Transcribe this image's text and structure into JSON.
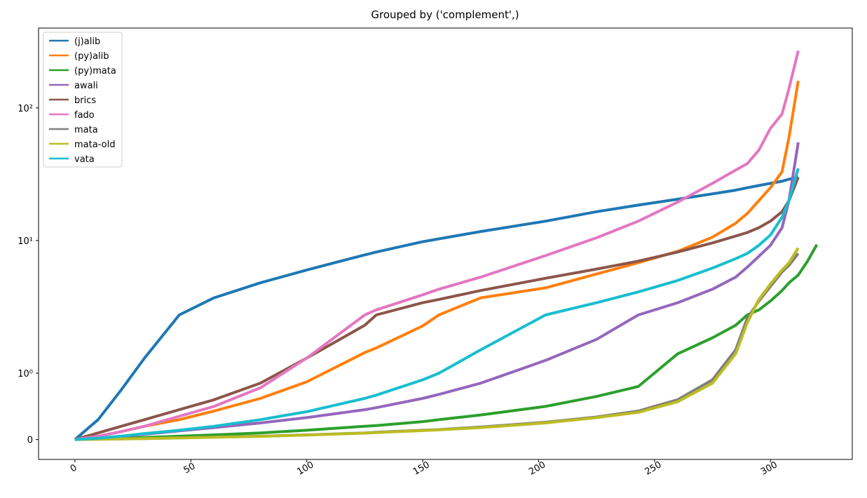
{
  "chart_data": {
    "type": "line",
    "title": "Grouped by ('complement',)",
    "yscale": "symlog",
    "linthresh": 1,
    "x": [
      0,
      10,
      20,
      30,
      45,
      60,
      80,
      100,
      125,
      130,
      150,
      157,
      175,
      203,
      225,
      243,
      260,
      275,
      285,
      290,
      295,
      300,
      305,
      308,
      312,
      316,
      320
    ],
    "xlim": [
      -15.7,
      335.3
    ],
    "xticks": [
      0,
      50,
      100,
      150,
      200,
      250,
      300
    ],
    "ylim": [
      -0.3,
      400
    ],
    "yticks": [
      0,
      {
        "value": 1,
        "label": "10⁰"
      },
      {
        "value": 10,
        "label": "10¹"
      },
      {
        "value": 100,
        "label": "10²"
      }
    ],
    "legend": "upper left",
    "series": [
      {
        "name": "(j)alib",
        "color": "#1f77b4",
        "values": [
          0,
          0.3,
          0.75,
          1.3,
          2.75,
          3.7,
          4.8,
          6.0,
          7.8,
          8.2,
          9.8,
          10.3,
          11.7,
          14,
          16.5,
          18.5,
          20.5,
          22.5,
          24,
          25,
          26,
          27,
          28,
          29,
          30,
          null,
          null
        ]
      },
      {
        "name": "(py)alib",
        "color": "#ff7f0e",
        "values": [
          0,
          0.05,
          0.12,
          0.2,
          0.3,
          0.43,
          0.62,
          0.87,
          1.43,
          1.55,
          2.27,
          2.75,
          3.7,
          4.4,
          5.6,
          6.8,
          8.3,
          10.6,
          13.5,
          16,
          20,
          25,
          33,
          60,
          160,
          null,
          null
        ]
      },
      {
        "name": "(py)mata",
        "color": "#2ca02c",
        "values": [
          0,
          0.01,
          0.02,
          0.03,
          0.05,
          0.07,
          0.1,
          0.14,
          0.2,
          0.21,
          0.27,
          0.3,
          0.37,
          0.5,
          0.65,
          0.8,
          1.4,
          1.85,
          2.3,
          2.75,
          3.0,
          3.5,
          4.2,
          4.8,
          5.5,
          7,
          9.3
        ]
      },
      {
        "name": "awali",
        "color": "#9467bd",
        "values": [
          0,
          0.02,
          0.05,
          0.08,
          0.13,
          0.18,
          0.25,
          0.33,
          0.45,
          0.48,
          0.62,
          0.68,
          0.85,
          1.25,
          1.8,
          2.75,
          3.4,
          4.3,
          5.3,
          6.3,
          7.6,
          9.2,
          12.5,
          20,
          55,
          null,
          null
        ]
      },
      {
        "name": "brics",
        "color": "#8c564b",
        "values": [
          0,
          0.1,
          0.2,
          0.3,
          0.45,
          0.6,
          0.85,
          1.3,
          2.3,
          2.75,
          3.4,
          3.6,
          4.2,
          5.2,
          6.1,
          7.0,
          8.2,
          9.6,
          10.8,
          11.5,
          12.5,
          14,
          16.5,
          20,
          30,
          null,
          null
        ]
      },
      {
        "name": "fado",
        "color": "#e377c2",
        "values": [
          0,
          0.05,
          0.12,
          0.2,
          0.35,
          0.5,
          0.78,
          1.3,
          2.75,
          3.0,
          3.9,
          4.3,
          5.3,
          7.7,
          10.5,
          14,
          19.5,
          27,
          34,
          38,
          48,
          70,
          90,
          140,
          270,
          null,
          null
        ]
      },
      {
        "name": "mata",
        "color": "#7f7f7f",
        "values": [
          0,
          0.005,
          0.01,
          0.015,
          0.025,
          0.035,
          0.05,
          0.07,
          0.1,
          0.11,
          0.14,
          0.15,
          0.19,
          0.26,
          0.34,
          0.43,
          0.6,
          0.9,
          1.5,
          2.6,
          3.5,
          4.5,
          5.8,
          6.5,
          8,
          null,
          null
        ]
      },
      {
        "name": "mata-old",
        "color": "#bcbd22",
        "values": [
          0,
          0.005,
          0.01,
          0.015,
          0.024,
          0.034,
          0.048,
          0.068,
          0.097,
          0.105,
          0.135,
          0.145,
          0.18,
          0.25,
          0.33,
          0.41,
          0.57,
          0.85,
          1.4,
          2.4,
          3.6,
          4.7,
          6.0,
          6.8,
          8.8,
          null,
          null
        ]
      },
      {
        "name": "vata",
        "color": "#17becf",
        "values": [
          0,
          0.02,
          0.05,
          0.09,
          0.14,
          0.2,
          0.3,
          0.42,
          0.62,
          0.67,
          0.9,
          1.0,
          1.5,
          2.75,
          3.4,
          4.1,
          5.0,
          6.2,
          7.3,
          8.0,
          9.2,
          11,
          15,
          20,
          35,
          null,
          null
        ]
      }
    ]
  }
}
